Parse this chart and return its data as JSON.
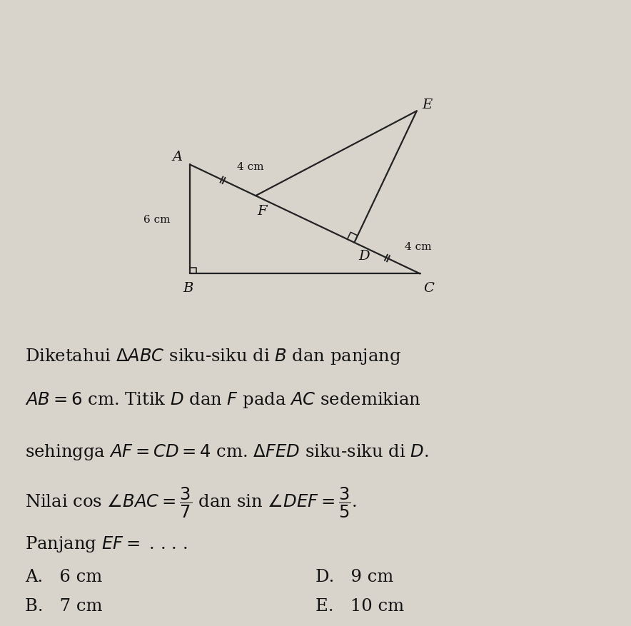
{
  "bg_color": "#d8d4cc",
  "line_color": "#222222",
  "text_color": "#111111",
  "fig_width": 8.84,
  "fig_height": 8.78,
  "dpi": 100,
  "label_A": "A",
  "label_B": "B",
  "label_C": "C",
  "label_D": "D",
  "label_E": "E",
  "label_F": "F",
  "label_4cm_AF": "4 cm",
  "label_4cm_CD": "4 cm",
  "label_6cm": "6 cm"
}
